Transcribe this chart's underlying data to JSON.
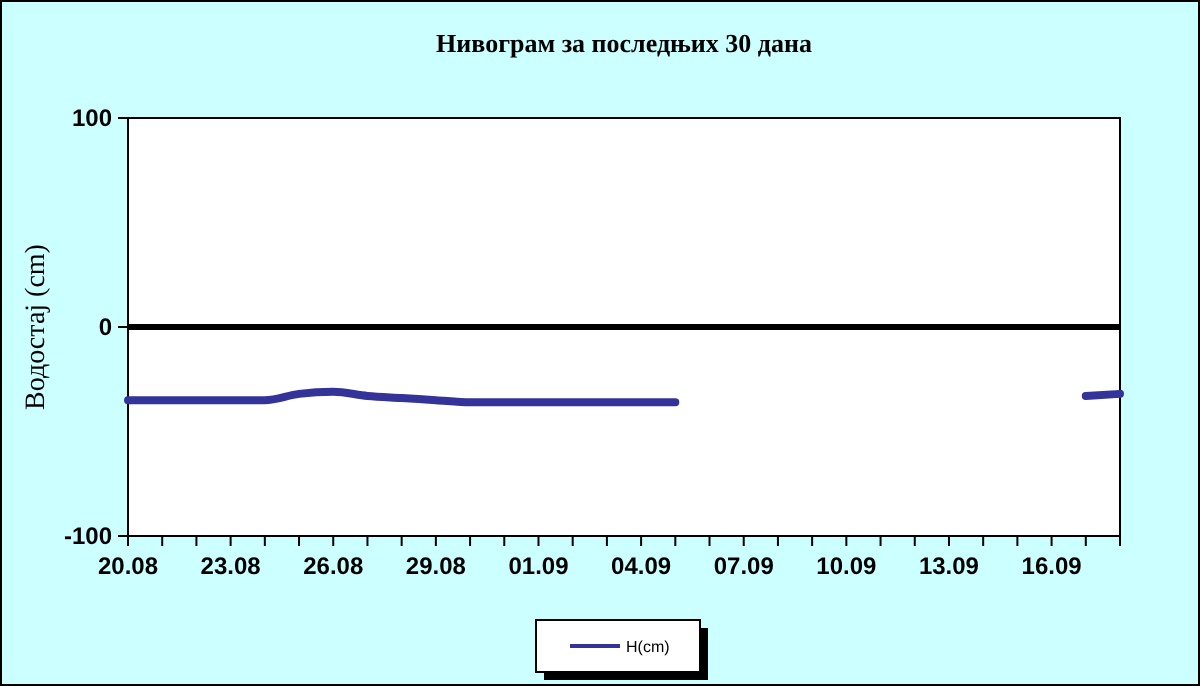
{
  "chart_data": {
    "type": "line",
    "title": "Нивограм за последњих 30 дана",
    "ylabel": "Водостај (cm)",
    "x": [
      "--08-20",
      "--08-21",
      "--08-22",
      "--08-23",
      "--08-24",
      "--08-25",
      "--08-26",
      "--08-27",
      "--08-28",
      "--08-29",
      "--08-30",
      "--08-31",
      "--09-01",
      "--09-02",
      "--09-03",
      "--09-04",
      "--09-05",
      "--09-06",
      "--09-07",
      "--09-08",
      "--09-09",
      "--09-10",
      "--09-11",
      "--09-12",
      "--09-13",
      "--09-14",
      "--09-15",
      "--09-16",
      "--09-17",
      "--09-18"
    ],
    "series": [
      {
        "name": "H(cm)",
        "color": "#333399",
        "values": [
          -35,
          -35,
          -35,
          -35,
          -35,
          -32,
          -31,
          -33,
          -34,
          -35,
          -36,
          -36,
          -36,
          -36,
          -36,
          -36,
          -36,
          null,
          null,
          null,
          null,
          null,
          null,
          null,
          null,
          null,
          null,
          null,
          -33,
          -32
        ]
      }
    ],
    "xlim": [
      "--08-20",
      "--09-18"
    ],
    "xticks": [
      {
        "value": "--08-20",
        "label": "20.08"
      },
      {
        "value": "--08-21",
        "label": null
      },
      {
        "value": "--08-22",
        "label": null
      },
      {
        "value": "--08-23",
        "label": "23.08"
      },
      {
        "value": "--08-24",
        "label": null
      },
      {
        "value": "--08-25",
        "label": null
      },
      {
        "value": "--08-26",
        "label": "26.08"
      },
      {
        "value": "--08-27",
        "label": null
      },
      {
        "value": "--08-28",
        "label": null
      },
      {
        "value": "--08-29",
        "label": "29.08"
      },
      {
        "value": "--08-30",
        "label": null
      },
      {
        "value": "--08-31",
        "label": null
      },
      {
        "value": "--09-01",
        "label": "01.09"
      },
      {
        "value": "--09-02",
        "label": null
      },
      {
        "value": "--09-03",
        "label": null
      },
      {
        "value": "--09-04",
        "label": "04.09"
      },
      {
        "value": "--09-05",
        "label": null
      },
      {
        "value": "--09-06",
        "label": null
      },
      {
        "value": "--09-07",
        "label": "07.09"
      },
      {
        "value": "--09-08",
        "label": null
      },
      {
        "value": "--09-09",
        "label": null
      },
      {
        "value": "--09-10",
        "label": "10.09"
      },
      {
        "value": "--09-11",
        "label": null
      },
      {
        "value": "--09-12",
        "label": null
      },
      {
        "value": "--09-13",
        "label": "13.09"
      },
      {
        "value": "--09-14",
        "label": null
      },
      {
        "value": "--09-15",
        "label": null
      },
      {
        "value": "--09-16",
        "label": "16.09"
      },
      {
        "value": "--09-17",
        "label": null
      },
      {
        "value": "--09-18",
        "label": null
      }
    ],
    "ylim": [
      -100,
      100
    ],
    "yticks": [
      -100,
      0,
      100
    ],
    "ref_lines": [
      {
        "axis": "y",
        "value": 0,
        "color": "#000000"
      }
    ],
    "grid": false,
    "legend": "bottom",
    "line_style": "solid",
    "marker": "none"
  }
}
